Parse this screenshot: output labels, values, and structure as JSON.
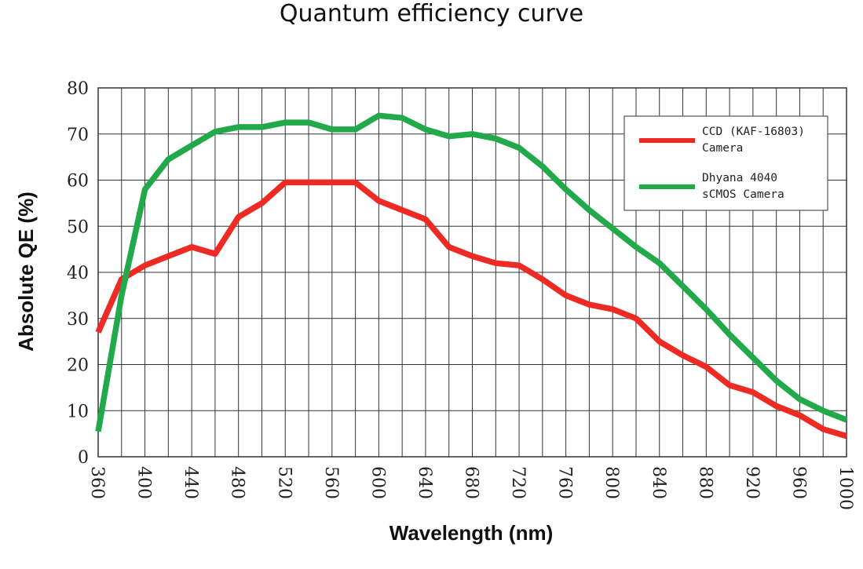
{
  "chart_data": {
    "type": "line",
    "title": "Quantum efficiency curve",
    "xlabel": "Wavelength (nm)",
    "ylabel": "Absolute QE (%)",
    "xlim": [
      360,
      1000
    ],
    "ylim": [
      0,
      80
    ],
    "x_major_ticks": [
      "360",
      "400",
      "440",
      "480",
      "520",
      "560",
      "600",
      "640",
      "680",
      "720",
      "760",
      "800",
      "840",
      "880",
      "920",
      "960",
      "1000"
    ],
    "y_ticks": [
      "0",
      "10",
      "20",
      "30",
      "40",
      "50",
      "60",
      "70",
      "80"
    ],
    "grid": true,
    "legend_position": "top-right",
    "series": [
      {
        "name": "CCD (KAF-16803) Camera",
        "legend_lines": [
          "CCD (KAF-16803)",
          "Camera"
        ],
        "color": "#ee2a24",
        "x": [
          360,
          380,
          400,
          420,
          440,
          460,
          480,
          500,
          520,
          540,
          560,
          580,
          600,
          620,
          640,
          660,
          680,
          700,
          720,
          740,
          760,
          780,
          800,
          820,
          840,
          860,
          880,
          900,
          920,
          940,
          960,
          980,
          1000
        ],
        "y": [
          27,
          38.5,
          41.5,
          43.5,
          45.5,
          44,
          52,
          55,
          59.5,
          59.5,
          59.5,
          59.5,
          55.5,
          53.5,
          51.5,
          45.5,
          43.5,
          42,
          41.5,
          38.5,
          35,
          33,
          32,
          30,
          25,
          22,
          19.5,
          15.5,
          14,
          11,
          9,
          6,
          4.5
        ]
      },
      {
        "name": "Dhyana 4040 sCMOS Camera",
        "legend_lines": [
          "Dhyana 4040",
          "sCMOS Camera"
        ],
        "color": "#21a94a",
        "x": [
          360,
          380,
          400,
          420,
          440,
          460,
          480,
          500,
          520,
          540,
          560,
          580,
          600,
          620,
          640,
          660,
          680,
          700,
          720,
          740,
          760,
          780,
          800,
          820,
          840,
          860,
          880,
          900,
          920,
          940,
          960,
          980,
          1000
        ],
        "y": [
          5.5,
          35,
          58,
          64.5,
          67.5,
          70.5,
          71.5,
          71.5,
          72.5,
          72.5,
          71,
          71,
          74,
          73.5,
          71,
          69.5,
          70,
          69,
          67,
          63,
          58,
          53.5,
          49.5,
          45.5,
          42,
          37,
          32,
          26.5,
          21.5,
          16.5,
          12.5,
          10,
          8
        ]
      }
    ]
  }
}
